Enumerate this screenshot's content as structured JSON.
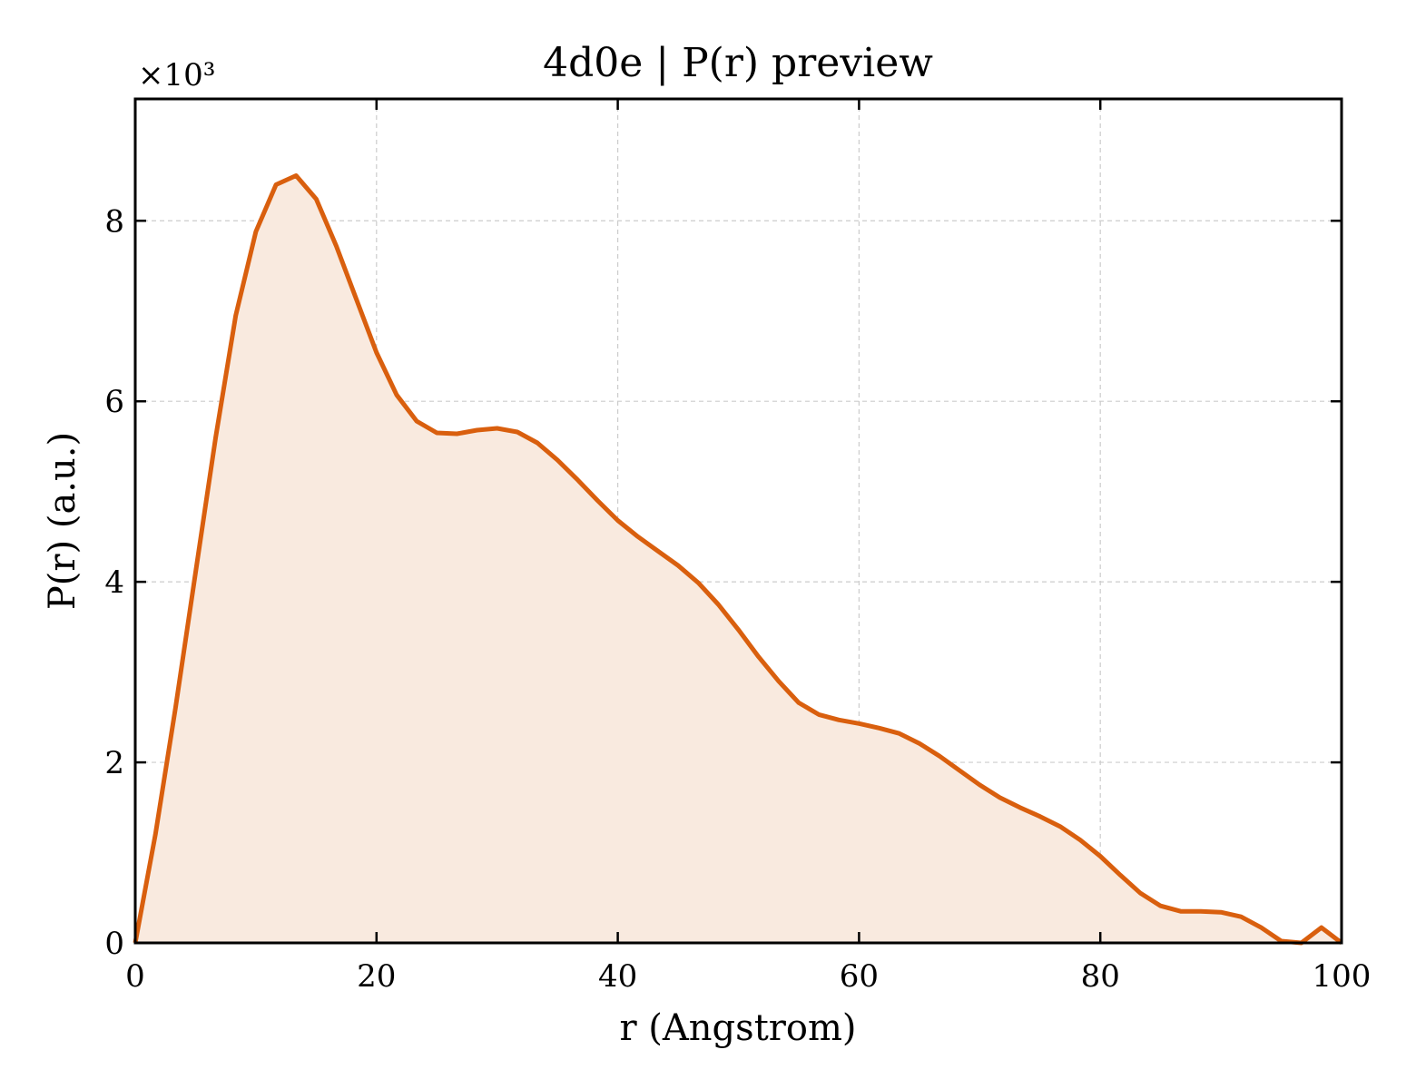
{
  "chart_data": {
    "type": "area",
    "title": "4d0e | P(r) preview",
    "xlabel": "r (Angstrom)",
    "ylabel": "P(r) (a.u.)",
    "y_multiplier_label": "×10³",
    "xlim": [
      0,
      100
    ],
    "ylim": [
      0,
      9.35
    ],
    "xticks": [
      0,
      20,
      40,
      60,
      80,
      100
    ],
    "yticks": [
      0,
      2,
      4,
      6,
      8
    ],
    "grid": true,
    "line_color": "#d95f0e",
    "fill_color": "#f9eadf",
    "series": [
      {
        "x": [
          0,
          1.67,
          3.33,
          5.0,
          6.67,
          8.33,
          10.0,
          11.67,
          13.33,
          15.0,
          16.67,
          18.33,
          20.0,
          21.67,
          23.33,
          25.0,
          26.67,
          28.33,
          30.0,
          31.67,
          33.33,
          35.0,
          36.67,
          38.33,
          40.0,
          41.67,
          43.33,
          45.0,
          46.67,
          48.33,
          50.0,
          51.67,
          53.33,
          55.0,
          56.67,
          58.33,
          60.0,
          61.67,
          63.33,
          65.0,
          66.67,
          68.33,
          70.0,
          71.67,
          73.33,
          75.0,
          76.67,
          78.33,
          80.0,
          81.67,
          83.33,
          85.0,
          86.67,
          88.33,
          90.0,
          91.67,
          93.33,
          95.0,
          96.67,
          98.33,
          100.0
        ],
        "values": [
          0,
          1.2,
          2.6,
          4.1,
          5.6,
          6.95,
          7.88,
          8.4,
          8.5,
          8.24,
          7.72,
          7.13,
          6.54,
          6.07,
          5.78,
          5.65,
          5.64,
          5.68,
          5.7,
          5.66,
          5.54,
          5.35,
          5.13,
          4.9,
          4.68,
          4.5,
          4.34,
          4.18,
          3.99,
          3.75,
          3.47,
          3.17,
          2.9,
          2.66,
          2.53,
          2.47,
          2.43,
          2.38,
          2.32,
          2.21,
          2.07,
          1.91,
          1.75,
          1.61,
          1.5,
          1.4,
          1.29,
          1.14,
          0.96,
          0.75,
          0.55,
          0.41,
          0.35,
          0.35,
          0.34,
          0.29,
          0.17,
          0.02,
          0.0,
          0.17,
          0.0
        ]
      }
    ]
  }
}
